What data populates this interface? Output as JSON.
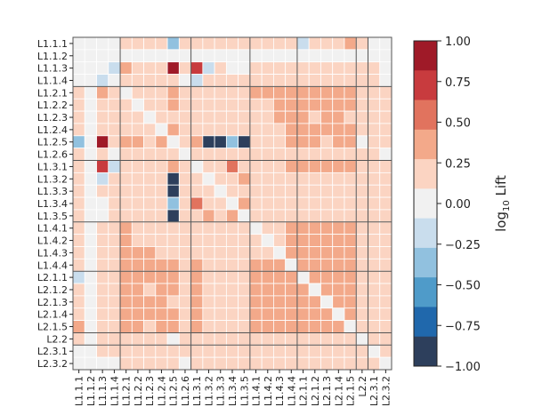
{
  "chart_data": {
    "type": "heatmap",
    "labels": [
      "L1.1.1",
      "L1.1.2",
      "L1.1.3",
      "L1.1.4",
      "L1.2.1",
      "L1.2.2",
      "L1.2.3",
      "L1.2.4",
      "L1.2.5",
      "L1.2.6",
      "L1.3.1",
      "L1.3.2",
      "L1.3.3",
      "L1.3.4",
      "L1.3.5",
      "L1.4.1",
      "L1.4.2",
      "L1.4.3",
      "L1.4.4",
      "L2.1.1",
      "L2.1.2",
      "L2.1.3",
      "L2.1.4",
      "L2.1.5",
      "L2.2",
      "L2.3.1",
      "L2.3.2"
    ],
    "group_boundaries_after_index": [
      3,
      9,
      14,
      18,
      23,
      24
    ],
    "color_scale": {
      "min": -1.0,
      "max": 1.0,
      "ticks": [
        "1.00",
        "0.75",
        "0.50",
        "0.25",
        "0.00",
        "−0.25",
        "−0.50",
        "−0.75",
        "−1.00"
      ],
      "tick_values": [
        1.0,
        0.75,
        0.5,
        0.25,
        0.0,
        -0.25,
        -0.5,
        -0.75,
        -1.0
      ],
      "colors_high_to_low": [
        "#9f1a28",
        "#c83b3e",
        "#e1735e",
        "#f3a98a",
        "#fbd4c2",
        "#f1f1f1",
        "#c9dded",
        "#91c1df",
        "#4f9bc9",
        "#2068ac",
        "#2d3f5c"
      ],
      "label": "log",
      "label_subscript": "10",
      "label_suffix": " Lift"
    },
    "values": [
      [
        0.04,
        0,
        0.08,
        0.05,
        0.12,
        0.18,
        0.2,
        0.15,
        -0.3,
        0.1,
        0.15,
        0.1,
        0.12,
        0.14,
        0.18,
        0.2,
        0.15,
        0.14,
        0.12,
        -0.1,
        0.1,
        0.12,
        0.1,
        0.4,
        0.1,
        0.08,
        0.05
      ],
      [
        0,
        0,
        0,
        0,
        0.05,
        0.05,
        0.05,
        0.05,
        0.05,
        0.05,
        0.05,
        0.05,
        0.05,
        0.05,
        0.05,
        0.05,
        0.05,
        0.05,
        0.05,
        0.05,
        0.05,
        0.05,
        0.05,
        0.05,
        0.05,
        0.05,
        0.05
      ],
      [
        0.08,
        0,
        0.08,
        -0.25,
        0.4,
        0.2,
        0.2,
        0.25,
        0.85,
        0.1,
        0.7,
        -0.1,
        0.1,
        0.05,
        -0.05,
        0.15,
        0.2,
        0.15,
        0.12,
        0.2,
        0.15,
        0.15,
        0.15,
        0.2,
        0.1,
        0.1,
        0.05
      ],
      [
        0.05,
        0,
        -0.25,
        0.05,
        0.15,
        0.12,
        0.1,
        0.15,
        0.2,
        0.05,
        -0.1,
        0.1,
        0.1,
        0.15,
        0.15,
        0.18,
        0.2,
        0.15,
        0.12,
        0.15,
        0.12,
        0.1,
        0.12,
        0.15,
        0.1,
        0.1,
        0.08
      ],
      [
        0.12,
        0.05,
        0.4,
        0.15,
        0.05,
        0.2,
        0.15,
        0.2,
        0.45,
        0.15,
        0.2,
        0.15,
        0.2,
        0.25,
        0.2,
        0.3,
        0.3,
        0.3,
        0.35,
        0.35,
        0.35,
        0.35,
        0.35,
        0.3,
        0.15,
        0.15,
        0.1
      ],
      [
        0.18,
        0.05,
        0.2,
        0.12,
        0.2,
        0.05,
        0.2,
        0.2,
        0.3,
        0.1,
        0.2,
        0.15,
        0.15,
        0.2,
        0.2,
        0.25,
        0.25,
        0.3,
        0.3,
        0.3,
        0.3,
        0.3,
        0.3,
        0.3,
        0.15,
        0.15,
        0.12
      ],
      [
        0.2,
        0.05,
        0.2,
        0.1,
        0.15,
        0.2,
        0.05,
        0.2,
        0.25,
        0.1,
        0.2,
        0.1,
        0.15,
        0.2,
        0.2,
        0.25,
        0.25,
        0.3,
        0.3,
        0.3,
        0.25,
        0.3,
        0.3,
        0.25,
        0.15,
        0.15,
        0.12
      ],
      [
        0.15,
        0.05,
        0.25,
        0.15,
        0.2,
        0.2,
        0.2,
        0.05,
        0.3,
        0.1,
        0.15,
        0.15,
        0.2,
        0.2,
        0.2,
        0.25,
        0.25,
        0.25,
        0.3,
        0.3,
        0.3,
        0.3,
        0.3,
        0.3,
        0.15,
        0.15,
        0.1
      ],
      [
        -0.3,
        0.05,
        0.85,
        0.2,
        0.45,
        0.3,
        0.25,
        0.3,
        0.05,
        0.15,
        0.3,
        -0.85,
        -0.85,
        -0.4,
        -0.85,
        0.25,
        0.2,
        0.25,
        0.3,
        0.45,
        0.3,
        0.25,
        0.3,
        0.35,
        0.05,
        0.2,
        0.15
      ],
      [
        0.1,
        0.05,
        0.1,
        0.05,
        0.15,
        0.1,
        0.1,
        0.1,
        0.15,
        0.05,
        0.1,
        0.1,
        0.1,
        0.15,
        0.1,
        0.15,
        0.15,
        0.15,
        0.15,
        0.15,
        0.15,
        0.15,
        0.15,
        0.2,
        0.1,
        0.1,
        0.08
      ],
      [
        0.15,
        0.05,
        0.7,
        -0.1,
        0.2,
        0.2,
        0.2,
        0.15,
        0.3,
        0.1,
        0.05,
        0.15,
        0.2,
        0.5,
        0.15,
        0.25,
        0.25,
        0.25,
        0.3,
        0.3,
        0.3,
        0.3,
        0.3,
        0.3,
        0.15,
        0.15,
        0.1
      ],
      [
        0.1,
        0.05,
        -0.1,
        0.1,
        0.15,
        0.15,
        0.1,
        0.15,
        -0.85,
        0.1,
        0.15,
        0.05,
        0.2,
        0.25,
        0.3,
        0.2,
        0.2,
        0.2,
        0.25,
        0.15,
        0.2,
        0.2,
        0.2,
        0.2,
        0.1,
        0.1,
        0.1
      ],
      [
        0.12,
        0.05,
        0.1,
        0.1,
        0.2,
        0.15,
        0.15,
        0.2,
        -0.85,
        0.1,
        0.2,
        0.2,
        0.05,
        0.25,
        0.25,
        0.25,
        0.25,
        0.25,
        0.25,
        0.25,
        0.25,
        0.25,
        0.25,
        0.25,
        0.15,
        0.15,
        0.1
      ],
      [
        0.14,
        0.05,
        0.05,
        0.15,
        0.25,
        0.2,
        0.2,
        0.2,
        -0.4,
        0.15,
        0.5,
        0.25,
        0.25,
        0.05,
        0.3,
        0.25,
        0.25,
        0.25,
        0.25,
        0.25,
        0.25,
        0.25,
        0.25,
        0.25,
        0.15,
        0.15,
        0.1
      ],
      [
        0.18,
        0.05,
        -0.05,
        0.15,
        0.2,
        0.2,
        0.2,
        0.2,
        -0.85,
        0.1,
        0.15,
        0.3,
        0.25,
        0.3,
        0.05,
        0.25,
        0.25,
        0.25,
        0.25,
        0.2,
        0.25,
        0.25,
        0.25,
        0.25,
        0.15,
        0.15,
        0.1
      ],
      [
        0.2,
        0.05,
        0.15,
        0.18,
        0.3,
        0.25,
        0.25,
        0.25,
        0.25,
        0.15,
        0.25,
        0.2,
        0.25,
        0.25,
        0.25,
        0.05,
        0.25,
        0.25,
        0.3,
        0.3,
        0.3,
        0.3,
        0.3,
        0.3,
        0.15,
        0.15,
        0.12
      ],
      [
        0.15,
        0.05,
        0.2,
        0.2,
        0.3,
        0.25,
        0.25,
        0.25,
        0.2,
        0.15,
        0.25,
        0.2,
        0.25,
        0.25,
        0.25,
        0.25,
        0.05,
        0.25,
        0.3,
        0.3,
        0.3,
        0.3,
        0.3,
        0.3,
        0.15,
        0.15,
        0.12
      ],
      [
        0.14,
        0.05,
        0.15,
        0.15,
        0.3,
        0.3,
        0.3,
        0.25,
        0.25,
        0.15,
        0.25,
        0.2,
        0.25,
        0.25,
        0.25,
        0.25,
        0.25,
        0.05,
        0.3,
        0.3,
        0.3,
        0.3,
        0.3,
        0.3,
        0.15,
        0.15,
        0.12
      ],
      [
        0.12,
        0.05,
        0.12,
        0.12,
        0.35,
        0.3,
        0.3,
        0.3,
        0.3,
        0.15,
        0.3,
        0.25,
        0.25,
        0.25,
        0.25,
        0.3,
        0.3,
        0.3,
        0.05,
        0.35,
        0.35,
        0.35,
        0.35,
        0.35,
        0.2,
        0.15,
        0.12
      ],
      [
        -0.1,
        0.05,
        0.2,
        0.15,
        0.35,
        0.3,
        0.3,
        0.3,
        0.45,
        0.15,
        0.3,
        0.15,
        0.25,
        0.25,
        0.2,
        0.3,
        0.3,
        0.3,
        0.35,
        0.05,
        0.35,
        0.35,
        0.35,
        0.35,
        0.2,
        0.15,
        0.12
      ],
      [
        0.1,
        0.05,
        0.15,
        0.12,
        0.35,
        0.3,
        0.25,
        0.3,
        0.3,
        0.15,
        0.3,
        0.2,
        0.25,
        0.25,
        0.25,
        0.3,
        0.3,
        0.3,
        0.35,
        0.35,
        0.05,
        0.35,
        0.35,
        0.35,
        0.2,
        0.15,
        0.12
      ],
      [
        0.12,
        0.05,
        0.15,
        0.1,
        0.35,
        0.3,
        0.3,
        0.3,
        0.25,
        0.15,
        0.3,
        0.2,
        0.25,
        0.25,
        0.25,
        0.3,
        0.3,
        0.3,
        0.35,
        0.35,
        0.35,
        0.05,
        0.35,
        0.35,
        0.2,
        0.15,
        0.12
      ],
      [
        0.1,
        0.05,
        0.15,
        0.12,
        0.35,
        0.3,
        0.3,
        0.3,
        0.3,
        0.15,
        0.3,
        0.2,
        0.25,
        0.25,
        0.25,
        0.3,
        0.3,
        0.3,
        0.35,
        0.35,
        0.35,
        0.35,
        0.05,
        0.35,
        0.2,
        0.15,
        0.12
      ],
      [
        0.4,
        0.05,
        0.2,
        0.15,
        0.3,
        0.3,
        0.25,
        0.3,
        0.35,
        0.2,
        0.3,
        0.2,
        0.25,
        0.25,
        0.25,
        0.3,
        0.3,
        0.3,
        0.35,
        0.35,
        0.35,
        0.35,
        0.35,
        0.05,
        0.2,
        0.15,
        0.12
      ],
      [
        0.1,
        0.05,
        0.1,
        0.1,
        0.15,
        0.15,
        0.15,
        0.15,
        0.05,
        0.1,
        0.15,
        0.1,
        0.15,
        0.15,
        0.15,
        0.15,
        0.15,
        0.15,
        0.2,
        0.2,
        0.2,
        0.2,
        0.2,
        0.2,
        0.05,
        0.1,
        0.1
      ],
      [
        0.08,
        0.05,
        0.1,
        0.1,
        0.15,
        0.15,
        0.15,
        0.15,
        0.2,
        0.1,
        0.15,
        0.1,
        0.15,
        0.15,
        0.15,
        0.15,
        0.15,
        0.15,
        0.15,
        0.15,
        0.15,
        0.15,
        0.15,
        0.15,
        0.1,
        0.05,
        0.1
      ],
      [
        0.05,
        0.05,
        0.05,
        0.08,
        0.1,
        0.12,
        0.12,
        0.1,
        0.15,
        0.08,
        0.1,
        0.1,
        0.1,
        0.1,
        0.1,
        0.12,
        0.12,
        0.12,
        0.12,
        0.12,
        0.12,
        0.12,
        0.12,
        0.12,
        0.1,
        0.1,
        0.05
      ]
    ]
  }
}
